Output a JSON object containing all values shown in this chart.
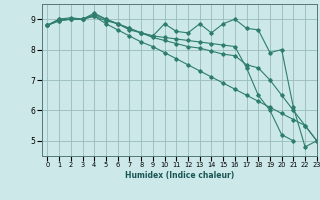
{
  "title": "",
  "xlabel": "Humidex (Indice chaleur)",
  "bg_color": "#cce8e8",
  "grid_color": "#99bbbb",
  "line_color": "#2e7d6e",
  "xlim": [
    -0.5,
    23
  ],
  "ylim": [
    4.5,
    9.5
  ],
  "yticks": [
    5,
    6,
    7,
    8,
    9
  ],
  "xticks": [
    0,
    1,
    2,
    3,
    4,
    5,
    6,
    7,
    8,
    9,
    10,
    11,
    12,
    13,
    14,
    15,
    16,
    17,
    18,
    19,
    20,
    21,
    22,
    23
  ],
  "series": [
    [
      8.8,
      8.95,
      9.0,
      9.0,
      9.15,
      9.0,
      8.85,
      8.65,
      8.55,
      8.45,
      8.85,
      8.6,
      8.55,
      8.85,
      8.55,
      8.85,
      9.0,
      8.7,
      8.65,
      7.9,
      8.0,
      6.1,
      4.8,
      5.0
    ],
    [
      8.8,
      9.0,
      9.05,
      9.0,
      9.2,
      9.0,
      8.85,
      8.7,
      8.55,
      8.4,
      8.3,
      8.2,
      8.1,
      8.05,
      7.95,
      7.85,
      7.8,
      7.5,
      7.4,
      7.0,
      6.5,
      6.0,
      5.5,
      5.0
    ],
    [
      8.8,
      8.95,
      9.0,
      9.0,
      9.1,
      8.85,
      8.65,
      8.45,
      8.25,
      8.1,
      7.9,
      7.7,
      7.5,
      7.3,
      7.1,
      6.9,
      6.7,
      6.5,
      6.3,
      6.1,
      5.9,
      5.7,
      5.5,
      5.0
    ],
    [
      8.8,
      9.0,
      9.0,
      9.0,
      9.1,
      8.95,
      8.85,
      8.7,
      8.55,
      8.45,
      8.4,
      8.35,
      8.3,
      8.25,
      8.2,
      8.15,
      8.1,
      7.4,
      6.5,
      6.0,
      5.2,
      5.0,
      null,
      null
    ]
  ]
}
